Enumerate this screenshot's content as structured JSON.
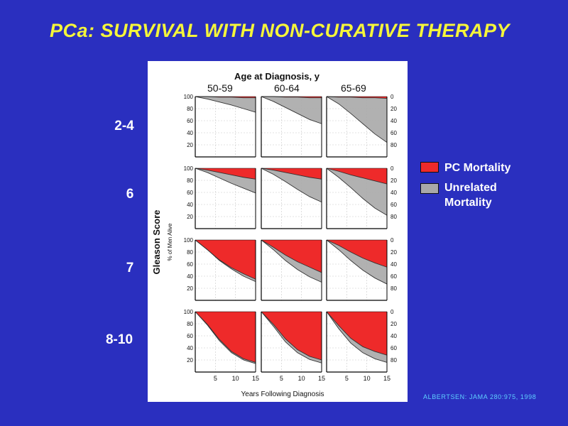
{
  "slide": {
    "title": "PCa: SURVIVAL  WITH  NON-CURATIVE  THERAPY",
    "citation": "ALBERTSEN: JAMA 280:975, 1998"
  },
  "legend": {
    "pc_label": "PC Mortality",
    "unrelated_label_line1": "Unrelated",
    "unrelated_label_line2": "Mortality"
  },
  "colors": {
    "background": "#2a2fbf",
    "title": "#f5f53a",
    "pc": "#ee2a2a",
    "unrelated": "#a9a9a9",
    "citation": "#5fd0ff"
  },
  "chart_data": {
    "type": "area",
    "column_header": "Age at Diagnosis, y",
    "columns": [
      "50-59",
      "60-64",
      "65-69"
    ],
    "row_header": "Gleason Score",
    "rows": [
      "2-4",
      "6",
      "7",
      "8-10"
    ],
    "y_label_left": "% of Men Alive",
    "y_ticks_left": [
      "100",
      "80",
      "60",
      "40",
      "20"
    ],
    "y_ticks_right": [
      "0",
      "20",
      "40",
      "60",
      "80"
    ],
    "xlabel": "Years Following Diagnosis",
    "x_ticks": [
      "5",
      "10",
      "15"
    ],
    "xlim": [
      0,
      15
    ],
    "ylim": [
      0,
      100
    ],
    "x": [
      0,
      3,
      6,
      9,
      12,
      15
    ],
    "grid": true,
    "legend_position": "right",
    "series": [
      {
        "name": "PC Mortality",
        "color": "#ee2a2a"
      },
      {
        "name": "Unrelated Mortality",
        "color": "#a9a9a9"
      }
    ],
    "panels": [
      {
        "row": "2-4",
        "column": "50-59",
        "alive_all": [
          100,
          96,
          91,
          86,
          80,
          74
        ],
        "alive_pc_only": [
          100,
          100,
          99,
          99,
          98,
          98
        ]
      },
      {
        "row": "2-4",
        "column": "60-64",
        "alive_all": [
          100,
          92,
          82,
          72,
          62,
          55
        ],
        "alive_pc_only": [
          100,
          100,
          99,
          99,
          98,
          98
        ]
      },
      {
        "row": "2-4",
        "column": "65-69",
        "alive_all": [
          100,
          88,
          72,
          55,
          38,
          24
        ],
        "alive_pc_only": [
          100,
          99,
          99,
          98,
          98,
          97
        ]
      },
      {
        "row": "6",
        "column": "50-59",
        "alive_all": [
          100,
          93,
          84,
          75,
          67,
          59
        ],
        "alive_pc_only": [
          100,
          97,
          93,
          89,
          85,
          82
        ]
      },
      {
        "row": "6",
        "column": "60-64",
        "alive_all": [
          100,
          90,
          78,
          65,
          53,
          44
        ],
        "alive_pc_only": [
          100,
          97,
          93,
          89,
          85,
          82
        ]
      },
      {
        "row": "6",
        "column": "65-69",
        "alive_all": [
          100,
          85,
          68,
          50,
          34,
          22
        ],
        "alive_pc_only": [
          100,
          95,
          89,
          84,
          79,
          74
        ]
      },
      {
        "row": "7",
        "column": "50-59",
        "alive_all": [
          100,
          84,
          66,
          52,
          40,
          31
        ],
        "alive_pc_only": [
          100,
          84,
          67,
          54,
          44,
          35
        ]
      },
      {
        "row": "7",
        "column": "60-64",
        "alive_all": [
          100,
          84,
          66,
          51,
          39,
          30
        ],
        "alive_pc_only": [
          100,
          88,
          75,
          64,
          55,
          46
        ]
      },
      {
        "row": "7",
        "column": "65-69",
        "alive_all": [
          100,
          84,
          66,
          50,
          37,
          27
        ],
        "alive_pc_only": [
          100,
          91,
          80,
          70,
          62,
          55
        ]
      },
      {
        "row": "8-10",
        "column": "50-59",
        "alive_all": [
          100,
          78,
          52,
          32,
          20,
          14
        ],
        "alive_pc_only": [
          100,
          79,
          54,
          34,
          22,
          16
        ]
      },
      {
        "row": "8-10",
        "column": "60-64",
        "alive_all": [
          100,
          76,
          50,
          32,
          21,
          15
        ],
        "alive_pc_only": [
          100,
          79,
          55,
          37,
          26,
          20
        ]
      },
      {
        "row": "8-10",
        "column": "65-69",
        "alive_all": [
          100,
          72,
          48,
          32,
          22,
          16
        ],
        "alive_pc_only": [
          100,
          77,
          56,
          42,
          34,
          28
        ]
      }
    ]
  }
}
